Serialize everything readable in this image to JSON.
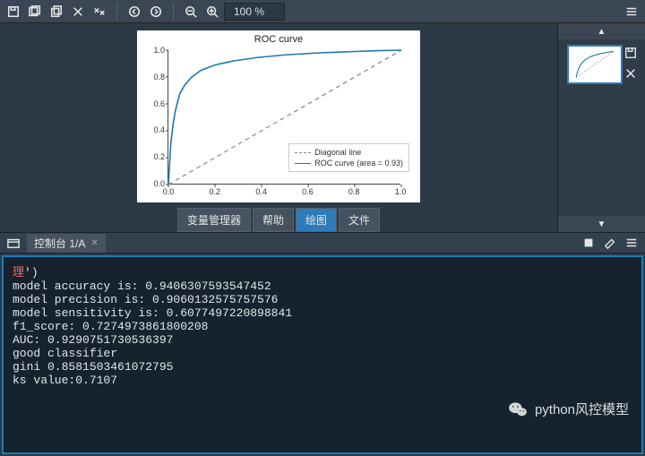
{
  "toolbar": {
    "zoom_text": "100 %"
  },
  "plot": {
    "type": "line",
    "title": "ROC curve",
    "title_fontsize": 11,
    "background_color": "#ffffff",
    "x": {
      "lim": [
        0.0,
        1.0
      ],
      "ticks": [
        0.0,
        0.2,
        0.4,
        0.6,
        0.8,
        1.0
      ],
      "tick_labels": [
        "0.0",
        "0.2",
        "0.4",
        "0.6",
        "0.8",
        "1.0"
      ]
    },
    "y": {
      "lim": [
        0.0,
        1.0
      ],
      "ticks": [
        0.0,
        0.2,
        0.4,
        0.6,
        0.8,
        1.0
      ],
      "tick_labels": [
        "0.0",
        "0.2",
        "0.4",
        "0.6",
        "0.8",
        "1.0"
      ]
    },
    "tick_fontsize": 9,
    "series": [
      {
        "name": "Diagonal line",
        "style": "dashed",
        "color": "#888888",
        "width": 1.2,
        "points": [
          [
            0.0,
            0.0
          ],
          [
            1.0,
            1.0
          ]
        ]
      },
      {
        "name": "ROC curve (area = 0.93)",
        "style": "solid",
        "color": "#1f77b4",
        "width": 1.6,
        "points": [
          [
            0.0,
            0.0
          ],
          [
            0.01,
            0.3
          ],
          [
            0.02,
            0.45
          ],
          [
            0.03,
            0.55
          ],
          [
            0.04,
            0.62
          ],
          [
            0.05,
            0.68
          ],
          [
            0.07,
            0.74
          ],
          [
            0.1,
            0.8
          ],
          [
            0.14,
            0.85
          ],
          [
            0.2,
            0.89
          ],
          [
            0.28,
            0.92
          ],
          [
            0.38,
            0.945
          ],
          [
            0.5,
            0.965
          ],
          [
            0.65,
            0.98
          ],
          [
            0.8,
            0.99
          ],
          [
            0.9,
            0.996
          ],
          [
            1.0,
            1.0
          ]
        ]
      }
    ],
    "legend": {
      "position": "lower right",
      "fontsize": 9,
      "items": [
        "Diagonal line",
        "ROC curve (area = 0.93)"
      ]
    }
  },
  "undertabs": {
    "items": [
      "变量管理器",
      "帮助",
      "绘图",
      "文件"
    ],
    "active_index": 2
  },
  "rightpanel": {
    "up": "▲",
    "down": "▼"
  },
  "console_tab": {
    "label": "控制台 1/A",
    "close": "✕"
  },
  "console": {
    "line0_red": "理",
    "line0_tail": "')",
    "line1": "model accuracy is: 0.9406307593547452",
    "line2": "model precision is: 0.9060132575757576",
    "line3": "model sensitivity is: 0.6077497220898841",
    "line4": "f1_score: 0.7274973861800208",
    "line5": "AUC: 0.9290751730536397",
    "line6": "good classifier",
    "line7": "gini 0.8581503461072795",
    "line8": "ks value:0.7107"
  },
  "watermark": {
    "text": "python风控模型"
  }
}
